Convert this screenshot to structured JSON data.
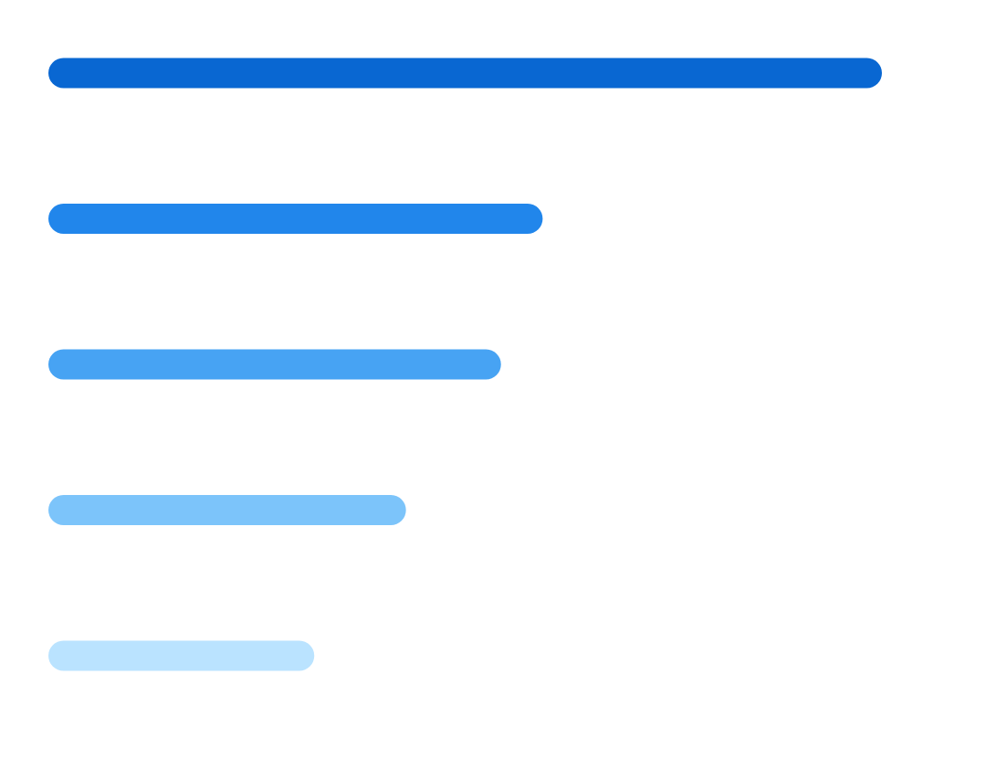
{
  "chart_data": {
    "type": "bar",
    "orientation": "horizontal",
    "title": "",
    "xlabel": "",
    "ylabel": "",
    "grid": false,
    "legend": "none",
    "xlim": [
      0,
      100
    ],
    "values": [
      100,
      59.3,
      54.3,
      42.9,
      31.9
    ],
    "colors": [
      "#0967d2",
      "#2186eb",
      "#47a3f3",
      "#7cc4fa",
      "#bae3ff"
    ]
  }
}
